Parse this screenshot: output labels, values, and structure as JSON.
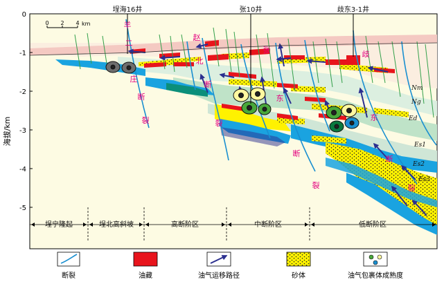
{
  "wells": {
    "w1": "埕海16井",
    "w2": "张10井",
    "w3": "歧东3-1井"
  },
  "scale": {
    "t0": "0",
    "t1": "2",
    "t2": "4",
    "unit": "km"
  },
  "y_axis": {
    "label": "海拔/km",
    "ticks": [
      "0",
      "-1",
      "-2",
      "-3",
      "-4",
      "-5"
    ]
  },
  "fault_labels": {
    "yangerzhuang": [
      "羊",
      "二",
      "庄",
      "断",
      "裂"
    ],
    "zhaobei": [
      "赵",
      "北",
      "断",
      "裂"
    ],
    "zhangdong": [
      "张",
      "东",
      "断",
      "裂"
    ],
    "qidong": [
      "歧",
      "东",
      "断",
      "裂"
    ]
  },
  "strata": {
    "nm": "Nm",
    "ng": "Ng",
    "ed": "Ed",
    "es1": "Es1",
    "es2": "Es2",
    "es3": "Es3"
  },
  "zones": [
    "埕宁隆起",
    "埕北高斜坡",
    "高断阶区",
    "中断阶区",
    "低断阶区"
  ],
  "legend": [
    "断裂",
    "油藏",
    "油气运移路径",
    "砂体",
    "油气包裹体成熟度"
  ],
  "colors": {
    "background": "#fdfbe3",
    "fault": "#1a8fd0",
    "oil": "#e8141c",
    "sand": "#fff200",
    "migration": "#2b2f8f",
    "es_blue": "#1aa3e0",
    "label_magenta": "#e4007f"
  }
}
